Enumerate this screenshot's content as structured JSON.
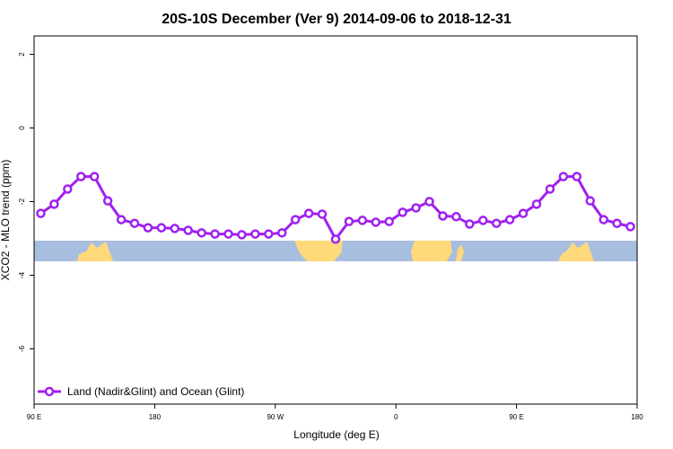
{
  "chart_data": {
    "type": "line",
    "title": "20S-10S December (Ver 9)   2014-09-06 to 2018-12-31",
    "x_label": "Longitude (deg E)",
    "y_label": "XCO2 - MLO trend (ppm)",
    "xlim": [
      90,
      540
    ],
    "xticks": [
      {
        "value": 90,
        "label": "90 E"
      },
      180,
      {
        "value": 270,
        "label": "90 W"
      },
      {
        "value": 360,
        "label": "0"
      },
      {
        "value": 450,
        "label": "90 E"
      },
      {
        "value": 540,
        "label": "180"
      }
    ],
    "ylim": [
      -7.5,
      2.5
    ],
    "yticks": [
      -6,
      -4,
      -2,
      0,
      2
    ],
    "x": [
      95,
      105,
      115,
      125,
      135,
      145,
      155,
      165,
      175,
      185,
      195,
      205,
      215,
      225,
      235,
      245,
      255,
      265,
      275,
      285,
      295,
      305,
      315,
      325,
      335,
      345,
      355,
      365,
      375,
      385,
      395,
      405,
      415,
      425,
      435,
      445,
      455,
      465,
      475,
      485,
      495,
      505,
      515,
      525,
      535
    ],
    "series": [
      {
        "name": "Land (Nadir&Glint) and Ocean (Glint)",
        "color": "#a020f0",
        "values": [
          -2.32,
          -2.07,
          -1.66,
          -1.32,
          -1.32,
          -1.98,
          -2.49,
          -2.59,
          -2.71,
          -2.71,
          -2.73,
          -2.78,
          -2.85,
          -2.88,
          -2.88,
          -2.9,
          -2.88,
          -2.88,
          -2.85,
          -2.49,
          -2.32,
          -2.34,
          -3.02,
          -2.54,
          -2.51,
          -2.56,
          -2.54,
          -2.29,
          -2.17,
          -2.0,
          -2.39,
          -2.41,
          -2.61,
          -2.51,
          -2.59,
          -2.49,
          -2.32,
          -2.07,
          -1.66,
          -1.32,
          -1.32,
          -1.98,
          -2.49,
          -2.59,
          -2.68
        ]
      }
    ],
    "legend": "bottom-left"
  }
}
